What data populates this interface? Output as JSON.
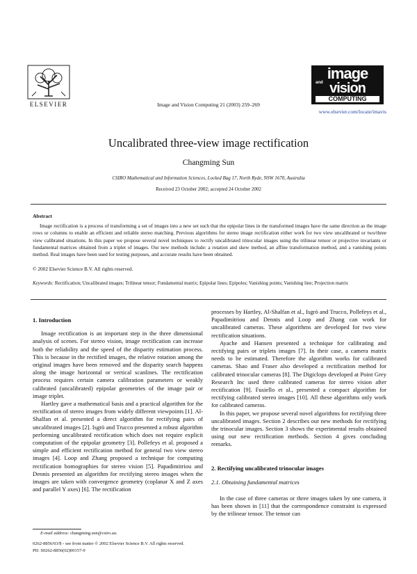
{
  "header": {
    "publisher": "ELSEVIER",
    "journal": "Image and Vision Computing 21 (2003) 259–269",
    "logo": [
      "image",
      "and",
      "vision",
      "COMPUTING"
    ],
    "url": "www.elsevier.com/locate/imavis"
  },
  "title": "Uncalibrated three-view image rectification",
  "author": "Changming Sun",
  "affiliation": "CSIRO Mathematical and Information Sciences, Locked Bag 17, North Ryde, NSW 1670, Australia",
  "received": "Received 23 October 2002; accepted 24 October 2002",
  "abstract": {
    "heading": "Abstract",
    "text": "Image rectification is a process of transforming a set of images into a new set such that the epipolar lines in the transformed images have the same direction as the image rows or columns to enable an efficient and reliable stereo matching. Previous algorithms for stereo image rectification either work for two view uncalibrated or two/three view calibrated situations. In this paper we propose several novel techniques to rectify uncalibrated trinocular images using the trilinear tensor or projective invariants or fundamental matrices obtained from a triplet of images. Our new methods include: a rotation and skew method, an affine transformation method, and a vanishing points method. Real images have been used for testing purposes, and accurate results have been obtained.",
    "copyright": "© 2002 Elsevier Science B.V. All rights reserved."
  },
  "keywords": {
    "label": "Keywords:",
    "text": "Rectification; Uncalibrated images; Trilinear tensor; Fundamental matrix; Epipolar lines; Epipoles; Vanishing points; Vanishing line; Projection matrix"
  },
  "body": {
    "section1": {
      "heading": "1. Introduction",
      "paragraphs": [
        "Image rectification is an important step in the three dimensional analysis of scenes. For stereo vision, image rectification can increase both the reliability and the speed of the disparity estimation process. This is because in the rectified images, the relative rotation among the original images have been removed and the disparity search happens along the image horizontal or vertical scanlines. The rectification process requires certain camera calibration parameters or weakly calibrated (uncalibrated) epipolar geometries of the image pair or image triplet.",
        "Hartley gave a mathematical basis and a practical algorithm for the rectification of stereo images from widely different viewpoints [1]. Al-Shalfan et al. presented a direct algorithm for rectifying pairs of uncalibrated images [2]. Isgrò and Trucco presented a robust algorithm performing uncalibrated rectification which does not require explicit computation of the epipolar geometry [3]. Pollefeys et al. proposed a simple and efficient rectification method for general two view stereo images [4]. Loop and Zhang proposed a technique for computing rectification homographies for stereo vision [5]. Papadimitriou and Dennis presented an algorithm for rectifying stereo images when the images are taken with convergence geometry (coplanar X and Z axes and parallel Y axes) [6]. The rectification",
        "processes by Hartley, Al-Shalfan et al., Isgrò and Trucco, Pollefeys et al., Papadimitriou and Dennis and Loop and Zhang can work for uncalibrated cameras. These algorithms are developed for two view rectification situations.",
        "Ayache and Hansen presented a technique for calibrating and rectifying pairs or triplets images [7]. In their case, a camera matrix needs to be estimated. Therefore the algorithm works for calibrated cameras. Shao and Fraser also developed a rectification method for calibrated trinocular cameras [8]. The Digiclops developed at Point Grey Research Inc used three calibrated cameras for stereo vision after rectification [9]. Fusiello et al., presented a compact algorithm for rectifying calibrated stereo images [10]. All these algorithms only work for calibrated cameras.",
        "In this paper, we propose several novel algorithms for rectifying three uncalibrated images. Section 2 describes our new methods for rectifying the trinocular images. Section 3 shows the experimental results obtained using our new rectification methods. Section 4 gives concluding remarks."
      ]
    },
    "section2": {
      "heading": "2. Rectifying uncalibrated trinocular images",
      "subheading": "2.1. Obtaining fundamental matrices",
      "paragraphs": [
        "In the case of three cameras or three images taken by one camera, it has been shown in [11] that the correspondence constraint is expressed by the trilinear tensor. The tensor can"
      ]
    }
  },
  "footnote": {
    "label": "E-mail address:",
    "email": "changming.sun@csiro.au."
  },
  "footer": [
    "0262-8856/03/$ - see front matter © 2002 Elsevier Science B.V. All rights reserved.",
    "PII: S0262-8856(02)00157-9"
  ]
}
